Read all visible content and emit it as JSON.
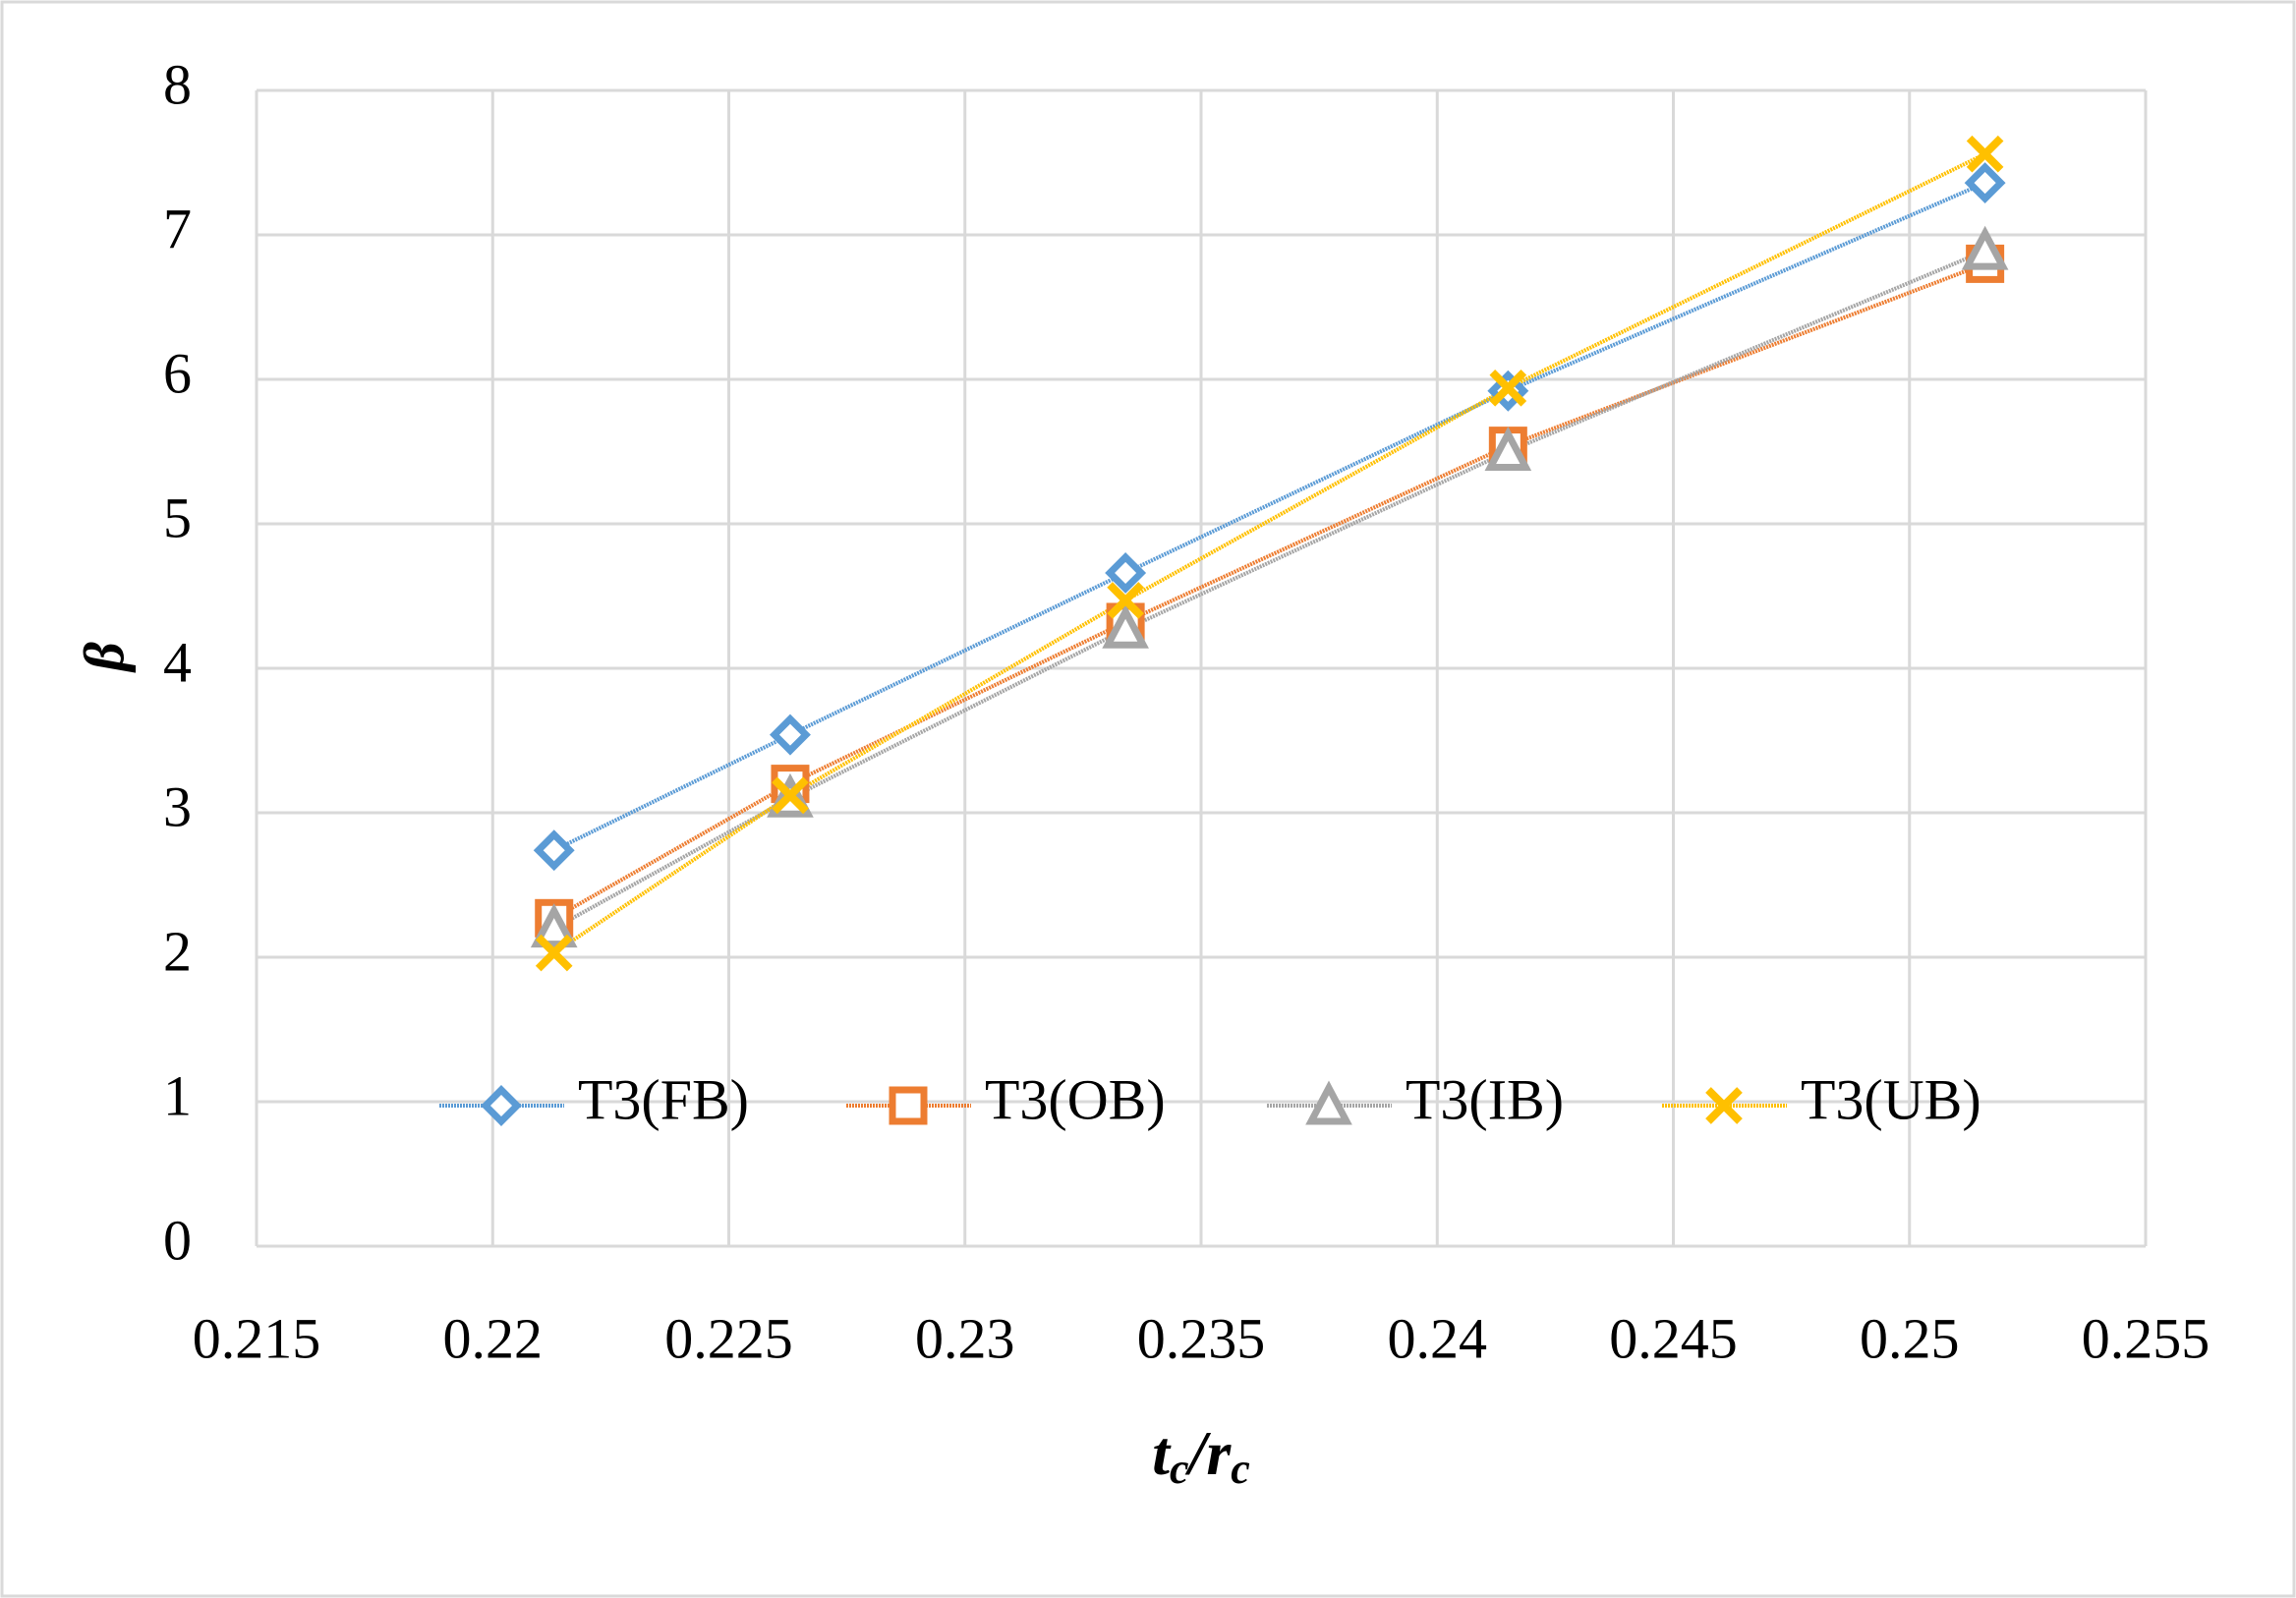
{
  "chart_data": {
    "type": "line",
    "x_label": [
      {
        "text": "t"
      },
      {
        "text": "c",
        "subscript": true
      },
      {
        "text": "/"
      },
      {
        "text": "r"
      },
      {
        "text": "c",
        "subscript": true
      }
    ],
    "y_label": "β",
    "x": [
      0.2213,
      0.2263,
      0.2334,
      0.2415,
      0.2516
    ],
    "series": [
      {
        "name": "T3(FB)",
        "color": "#5b9bd5",
        "marker": "diamond",
        "values": [
          2.74,
          3.54,
          4.66,
          5.92,
          7.36
        ]
      },
      {
        "name": "T3(OB)",
        "color": "#ed7d31",
        "marker": "square",
        "values": [
          2.27,
          3.2,
          4.32,
          5.54,
          6.8
        ]
      },
      {
        "name": "T3(IB)",
        "color": "#a5a5a5",
        "marker": "triangle",
        "values": [
          2.2,
          3.1,
          4.27,
          5.5,
          6.89
        ]
      },
      {
        "name": "T3(UB)",
        "color": "#ffc000",
        "marker": "x",
        "values": [
          2.03,
          3.12,
          4.47,
          5.94,
          7.56
        ]
      }
    ],
    "xlim": [
      0.215,
      0.255
    ],
    "xticks": [
      0.215,
      0.22,
      0.225,
      0.23,
      0.235,
      0.24,
      0.245,
      0.25,
      0.255
    ],
    "ylim": [
      0,
      8
    ],
    "yticks": [
      0,
      1,
      2,
      3,
      4,
      5,
      6,
      7,
      8
    ],
    "grid": true,
    "legend": "bottom"
  }
}
